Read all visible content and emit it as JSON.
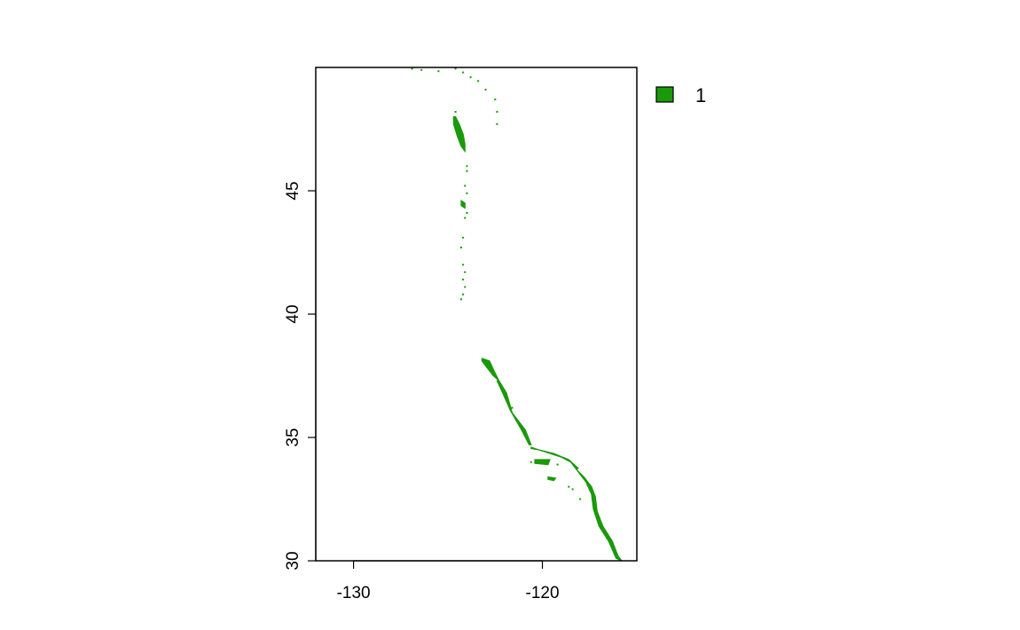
{
  "colors": {
    "background": "#ffffff",
    "raster_fill": "#1a990a",
    "legend_swatch": "#1a990a",
    "frame": "#000000"
  },
  "map": {
    "type": "raster",
    "x_axis": {
      "range": [
        -132,
        -115
      ],
      "ticks": [
        -130,
        -120
      ],
      "tick_labels": [
        "-130",
        "-120"
      ]
    },
    "y_axis": {
      "range": [
        30,
        50
      ],
      "ticks": [
        30,
        35,
        40,
        45
      ],
      "tick_labels": [
        "30",
        "35",
        "40",
        "45"
      ],
      "label_orientation": "rotated"
    },
    "legend": {
      "placement": "right",
      "entries": [
        {
          "label": "1",
          "color": "#1a990a"
        }
      ]
    },
    "grid": false
  },
  "chart_data": {
    "type": "heatmap",
    "title": "",
    "xlabel": "",
    "ylabel": "",
    "xlim": [
      -132,
      -115
    ],
    "ylim": [
      30,
      50
    ],
    "x_ticks": [
      -130,
      -120
    ],
    "y_ticks": [
      30,
      35,
      40,
      45
    ],
    "legend": [
      "1"
    ],
    "value_shown": 1,
    "regions": [
      {
        "name": "",
        "polygon": [
          [
            -124.6,
            48.0
          ],
          [
            -124.4,
            47.7
          ],
          [
            -124.2,
            47.3
          ],
          [
            -124.1,
            46.9
          ],
          [
            -124.1,
            46.6
          ],
          [
            -124.3,
            46.8
          ],
          [
            -124.5,
            47.2
          ],
          [
            -124.7,
            47.7
          ],
          [
            -124.7,
            48.0
          ]
        ]
      },
      {
        "name": "",
        "polygon": [
          [
            -123.2,
            38.2
          ],
          [
            -122.8,
            38.1
          ],
          [
            -122.5,
            37.6
          ],
          [
            -122.3,
            37.3
          ],
          [
            -122.6,
            37.5
          ],
          [
            -123.0,
            37.9
          ],
          [
            -123.2,
            38.1
          ]
        ]
      },
      {
        "name": "",
        "polygon": [
          [
            -122.3,
            37.3
          ],
          [
            -121.9,
            36.8
          ],
          [
            -121.6,
            36.0
          ],
          [
            -120.9,
            35.3
          ],
          [
            -120.6,
            34.7
          ],
          [
            -120.7,
            34.7
          ],
          [
            -121.1,
            35.3
          ],
          [
            -121.7,
            36.1
          ],
          [
            -122.1,
            36.8
          ],
          [
            -122.4,
            37.3
          ]
        ]
      },
      {
        "name": "",
        "polygon": [
          [
            -120.6,
            34.6
          ],
          [
            -119.8,
            34.4
          ],
          [
            -119.0,
            34.2
          ],
          [
            -118.5,
            34.0
          ],
          [
            -118.2,
            33.7
          ],
          [
            -118.1,
            33.75
          ],
          [
            -118.6,
            34.1
          ],
          [
            -119.4,
            34.35
          ],
          [
            -120.2,
            34.5
          ],
          [
            -120.6,
            34.55
          ]
        ]
      },
      {
        "name": "",
        "polygon": [
          [
            -118.2,
            33.7
          ],
          [
            -117.8,
            33.4
          ],
          [
            -117.4,
            33.0
          ],
          [
            -117.2,
            32.6
          ],
          [
            -117.1,
            32.0
          ],
          [
            -116.8,
            31.4
          ],
          [
            -116.3,
            30.8
          ],
          [
            -116.0,
            30.2
          ],
          [
            -115.8,
            30.0
          ],
          [
            -116.1,
            30.1
          ],
          [
            -116.5,
            30.8
          ],
          [
            -117.0,
            31.4
          ],
          [
            -117.3,
            32.1
          ],
          [
            -117.4,
            32.7
          ],
          [
            -117.7,
            33.2
          ],
          [
            -118.1,
            33.6
          ]
        ]
      },
      {
        "name": "",
        "polygon": [
          [
            -120.4,
            34.1
          ],
          [
            -119.6,
            34.1
          ],
          [
            -119.7,
            33.9
          ],
          [
            -120.4,
            33.95
          ]
        ]
      },
      {
        "name": "",
        "polygon": [
          [
            -119.7,
            33.4
          ],
          [
            -119.3,
            33.35
          ],
          [
            -119.4,
            33.25
          ],
          [
            -119.7,
            33.3
          ]
        ]
      },
      {
        "name": "",
        "polygon": [
          [
            -124.3,
            44.6
          ],
          [
            -124.1,
            44.5
          ],
          [
            -124.1,
            44.3
          ],
          [
            -124.3,
            44.4
          ]
        ]
      }
    ],
    "scattered_cells": [
      [
        -126.9,
        49.95
      ],
      [
        -126.4,
        49.9
      ],
      [
        -125.5,
        49.85
      ],
      [
        -124.6,
        49.95
      ],
      [
        -124.2,
        49.8
      ],
      [
        -123.8,
        49.6
      ],
      [
        -123.4,
        49.45
      ],
      [
        -123.0,
        49.1
      ],
      [
        -122.5,
        48.7
      ],
      [
        -122.4,
        48.2
      ],
      [
        -122.4,
        47.7
      ],
      [
        -124.6,
        48.2
      ],
      [
        -124.0,
        46.0
      ],
      [
        -124.0,
        45.8
      ],
      [
        -124.1,
        45.2
      ],
      [
        -124.0,
        44.9
      ],
      [
        -124.0,
        44.1
      ],
      [
        -124.1,
        43.9
      ],
      [
        -124.2,
        43.1
      ],
      [
        -124.3,
        42.7
      ],
      [
        -124.2,
        42.0
      ],
      [
        -124.1,
        41.7
      ],
      [
        -124.2,
        41.4
      ],
      [
        -124.1,
        41.1
      ],
      [
        -124.2,
        40.8
      ],
      [
        -124.3,
        40.6
      ],
      [
        -123.0,
        38.0
      ],
      [
        -122.0,
        36.9
      ],
      [
        -121.9,
        36.6
      ],
      [
        -121.6,
        36.2
      ],
      [
        -120.6,
        34.0
      ],
      [
        -119.2,
        33.9
      ],
      [
        -118.6,
        33.0
      ],
      [
        -118.4,
        32.9
      ],
      [
        -118.0,
        32.5
      ]
    ]
  }
}
